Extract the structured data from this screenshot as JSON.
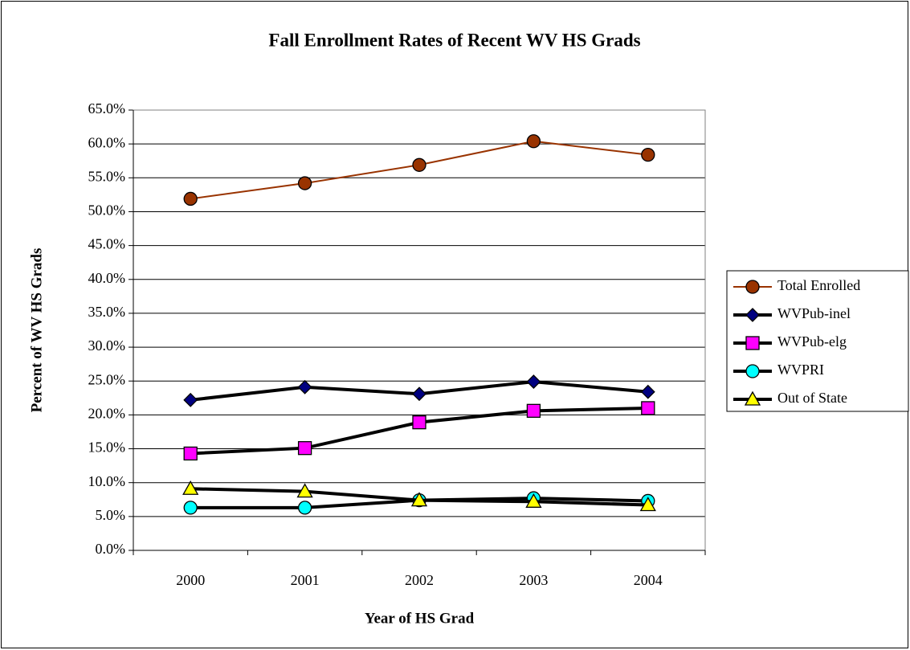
{
  "chart_data": {
    "type": "line",
    "title": "Fall Enrollment Rates of Recent WV HS Grads",
    "x_label": "Year of HS Grad",
    "y_label": "Percent of WV HS Grads",
    "categories": [
      "2000",
      "2001",
      "2002",
      "2003",
      "2004"
    ],
    "series": [
      {
        "name": "Total Enrolled",
        "color": "#993300",
        "marker": "circle",
        "marker_color": "#993300",
        "values": [
          51.9,
          54.2,
          56.9,
          60.4,
          58.4
        ]
      },
      {
        "name": "WVPub-inel",
        "color": "#000000",
        "marker": "diamond",
        "marker_color": "#000080",
        "values": [
          22.2,
          24.1,
          23.1,
          24.9,
          23.4
        ]
      },
      {
        "name": "WVPub-elg",
        "color": "#000000",
        "marker": "square",
        "marker_color": "#FF00FF",
        "values": [
          14.3,
          15.1,
          18.9,
          20.6,
          21.0
        ]
      },
      {
        "name": "WVPRI",
        "color": "#000000",
        "marker": "circle",
        "marker_color": "#00FFFF",
        "values": [
          6.3,
          6.3,
          7.4,
          7.7,
          7.3
        ]
      },
      {
        "name": "Out of State",
        "color": "#000000",
        "marker": "triangle",
        "marker_color": "#FFFF00",
        "values": [
          9.1,
          8.7,
          7.4,
          7.2,
          6.7
        ]
      }
    ],
    "ylim": [
      0,
      65
    ],
    "yticks": [
      {
        "value": 0,
        "label": "0.0%"
      },
      {
        "value": 5,
        "label": "5.0%"
      },
      {
        "value": 10,
        "label": "10.0%"
      },
      {
        "value": 15,
        "label": "15.0%"
      },
      {
        "value": 20,
        "label": "20.0%"
      },
      {
        "value": 25,
        "label": "25.0%"
      },
      {
        "value": 30,
        "label": "30.0%"
      },
      {
        "value": 35,
        "label": "35.0%"
      },
      {
        "value": 40,
        "label": "40.0%"
      },
      {
        "value": 45,
        "label": "45.0%"
      },
      {
        "value": 50,
        "label": "50.0%"
      },
      {
        "value": 55,
        "label": "55.0%"
      },
      {
        "value": 60,
        "label": "60.0%"
      },
      {
        "value": 65,
        "label": "65.0%"
      }
    ],
    "grid": true,
    "legend": "right"
  }
}
